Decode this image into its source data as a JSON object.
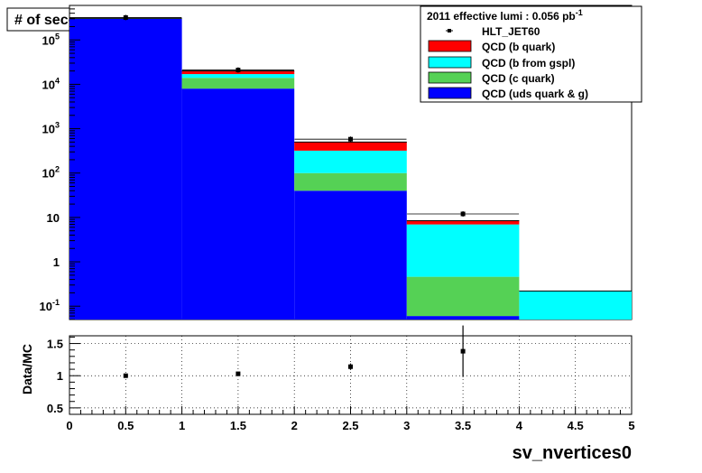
{
  "chart_data": {
    "type": "bar",
    "title": "# of secondary vertices",
    "xlabel": "sv_nvertices0",
    "ylabel": "",
    "x_bins": [
      [
        0,
        1
      ],
      [
        1,
        2
      ],
      [
        2,
        3
      ],
      [
        3,
        4
      ],
      [
        4,
        5
      ]
    ],
    "xlim": [
      0,
      5
    ],
    "ylim": [
      0.05,
      600000
    ],
    "yscale": "log",
    "series": [
      {
        "name": "QCD (uds quark & g)",
        "color": "#0000ff",
        "values": [
          300000,
          8000,
          40,
          0.06,
          0
        ]
      },
      {
        "name": "QCD (c quark)",
        "color": "#55d155",
        "values": [
          5000,
          6000,
          60,
          0.4,
          0
        ]
      },
      {
        "name": "QCD (b from gspl)",
        "color": "#00ffff",
        "values": [
          1500,
          3000,
          220,
          6.5,
          0.22
        ]
      },
      {
        "name": "QCD (b quark)",
        "color": "#ff0000",
        "values": [
          2000,
          3000,
          180,
          1.5,
          0
        ]
      }
    ],
    "data_series": {
      "name": "HLT_JET60",
      "x": [
        0.5,
        1.5,
        2.5,
        3.5
      ],
      "y": [
        320000,
        21000,
        580,
        12
      ]
    },
    "legend": {
      "header_text": "2011 effective lumi : 0.056  pb",
      "header_sup": "-1",
      "placement": "top-right"
    },
    "y_ticks": [
      "10",
      "1",
      "10"
    ],
    "y_tick_decades": [
      {
        "value": 0.1,
        "base": "10",
        "exp": "-1"
      },
      {
        "value": 1,
        "base": "1",
        "exp": ""
      },
      {
        "value": 10,
        "base": "10",
        "exp": ""
      },
      {
        "value": 100,
        "base": "10",
        "exp": "2"
      },
      {
        "value": 1000,
        "base": "10",
        "exp": "3"
      },
      {
        "value": 10000,
        "base": "10",
        "exp": "4"
      },
      {
        "value": 100000,
        "base": "10",
        "exp": "5"
      }
    ],
    "ratio": {
      "ylabel": "Data/MC",
      "ylim": [
        0.4,
        1.62
      ],
      "y_ticks": [
        0.5,
        1,
        1.5
      ],
      "y_tick_labels": [
        "0.5",
        "1",
        "1.5"
      ],
      "x": [
        0.5,
        1.5,
        2.5,
        3.5
      ],
      "y": [
        1.0,
        1.03,
        1.14,
        1.38
      ],
      "err": [
        0.0,
        0.02,
        0.05,
        0.4
      ],
      "grid": true
    },
    "x_tick_labels": [
      "0",
      "0.5",
      "1",
      "1.5",
      "2",
      "2.5",
      "3",
      "3.5",
      "4",
      "4.5",
      "5"
    ]
  }
}
